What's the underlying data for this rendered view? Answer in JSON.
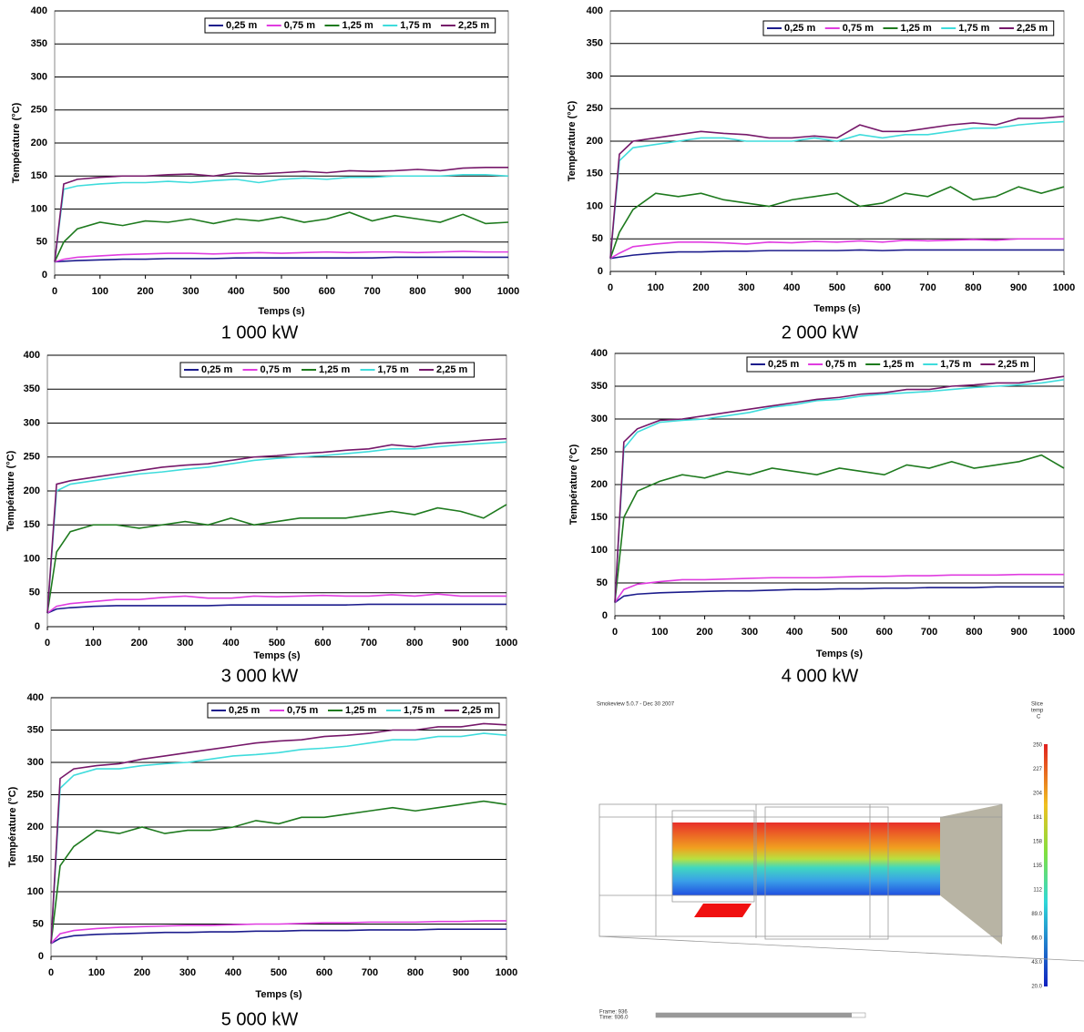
{
  "chart_data": [
    {
      "type": "line",
      "caption": "1 000 kW",
      "x_label": "Temps (s)",
      "y_label": "Température (°C)",
      "x": [
        0,
        20,
        50,
        100,
        150,
        200,
        250,
        300,
        350,
        400,
        450,
        500,
        550,
        600,
        650,
        700,
        750,
        800,
        850,
        900,
        950,
        1000
      ],
      "xlim": [
        0,
        1000
      ],
      "xticks": [
        0,
        100,
        200,
        300,
        400,
        500,
        600,
        700,
        800,
        900,
        1000
      ],
      "ylim": [
        0,
        400
      ],
      "yticks": [
        0,
        50,
        100,
        150,
        200,
        250,
        300,
        350,
        400
      ],
      "grid": true,
      "series": [
        {
          "name": "0,25 m",
          "color": "#1c1c8c",
          "values": [
            20,
            21,
            22,
            23,
            24,
            24,
            25,
            25,
            25,
            26,
            26,
            26,
            26,
            26,
            26,
            26,
            27,
            27,
            27,
            27,
            27,
            27
          ]
        },
        {
          "name": "0,75 m",
          "color": "#e03ce0",
          "values": [
            20,
            24,
            27,
            29,
            31,
            32,
            33,
            33,
            32,
            33,
            34,
            33,
            34,
            35,
            34,
            35,
            35,
            34,
            35,
            36,
            35,
            35
          ]
        },
        {
          "name": "1,25 m",
          "color": "#1e7a1e",
          "values": [
            20,
            50,
            70,
            80,
            75,
            82,
            80,
            85,
            78,
            85,
            82,
            88,
            80,
            85,
            95,
            82,
            90,
            85,
            80,
            92,
            78,
            80
          ]
        },
        {
          "name": "1,75 m",
          "color": "#3fdcdc",
          "values": [
            20,
            130,
            135,
            138,
            140,
            140,
            142,
            140,
            143,
            145,
            140,
            145,
            147,
            145,
            148,
            148,
            150,
            150,
            150,
            152,
            152,
            150
          ]
        },
        {
          "name": "2,25 m",
          "color": "#76186a",
          "values": [
            20,
            138,
            145,
            148,
            150,
            150,
            152,
            153,
            150,
            155,
            153,
            155,
            157,
            155,
            158,
            157,
            158,
            160,
            158,
            162,
            163,
            163
          ]
        }
      ]
    },
    {
      "type": "line",
      "caption": "2 000 kW",
      "x_label": "Temps (s)",
      "y_label": "Température (°C)",
      "x": [
        0,
        20,
        50,
        100,
        150,
        200,
        250,
        300,
        350,
        400,
        450,
        500,
        550,
        600,
        650,
        700,
        750,
        800,
        850,
        900,
        950,
        1000
      ],
      "xlim": [
        0,
        1000
      ],
      "xticks": [
        0,
        100,
        200,
        300,
        400,
        500,
        600,
        700,
        800,
        900,
        1000
      ],
      "ylim": [
        0,
        400
      ],
      "yticks": [
        0,
        50,
        100,
        150,
        200,
        250,
        300,
        350,
        400
      ],
      "grid": true,
      "series": [
        {
          "name": "0,25 m",
          "color": "#1c1c8c",
          "values": [
            20,
            22,
            25,
            28,
            30,
            30,
            31,
            31,
            32,
            32,
            32,
            32,
            33,
            32,
            33,
            33,
            33,
            33,
            33,
            33,
            33,
            33
          ]
        },
        {
          "name": "0,75 m",
          "color": "#e03ce0",
          "values": [
            20,
            28,
            38,
            42,
            45,
            45,
            44,
            42,
            45,
            44,
            46,
            45,
            47,
            45,
            48,
            47,
            48,
            49,
            48,
            50,
            50,
            50
          ]
        },
        {
          "name": "1,25 m",
          "color": "#1e7a1e",
          "values": [
            20,
            60,
            95,
            120,
            115,
            120,
            110,
            105,
            100,
            110,
            115,
            120,
            100,
            105,
            120,
            115,
            130,
            110,
            115,
            130,
            120,
            130
          ]
        },
        {
          "name": "1,75 m",
          "color": "#3fdcdc",
          "values": [
            20,
            170,
            190,
            195,
            200,
            205,
            205,
            200,
            200,
            200,
            205,
            200,
            210,
            205,
            210,
            210,
            215,
            220,
            220,
            225,
            228,
            230
          ]
        },
        {
          "name": "2,25 m",
          "color": "#76186a",
          "values": [
            20,
            180,
            200,
            205,
            210,
            215,
            212,
            210,
            205,
            205,
            208,
            205,
            225,
            215,
            215,
            220,
            225,
            228,
            225,
            235,
            235,
            238
          ]
        }
      ]
    },
    {
      "type": "line",
      "caption": "3 000 kW",
      "x_label": "Temps (s)",
      "y_label": "Température (°C)",
      "x": [
        0,
        20,
        50,
        100,
        150,
        200,
        250,
        300,
        350,
        400,
        450,
        500,
        550,
        600,
        650,
        700,
        750,
        800,
        850,
        900,
        950,
        1000
      ],
      "xlim": [
        0,
        1000
      ],
      "xticks": [
        0,
        100,
        200,
        300,
        400,
        500,
        600,
        700,
        800,
        900,
        1000
      ],
      "ylim": [
        0,
        400
      ],
      "yticks": [
        0,
        50,
        100,
        150,
        200,
        250,
        300,
        350,
        400
      ],
      "grid": true,
      "series": [
        {
          "name": "0,25 m",
          "color": "#1c1c8c",
          "values": [
            20,
            26,
            28,
            30,
            31,
            31,
            31,
            31,
            31,
            32,
            32,
            32,
            32,
            32,
            32,
            33,
            33,
            33,
            33,
            33,
            33,
            33
          ]
        },
        {
          "name": "0,75 m",
          "color": "#e03ce0",
          "values": [
            20,
            30,
            34,
            37,
            40,
            40,
            43,
            45,
            42,
            42,
            45,
            44,
            45,
            46,
            45,
            45,
            47,
            45,
            48,
            45,
            45,
            45
          ]
        },
        {
          "name": "1,25 m",
          "color": "#1e7a1e",
          "values": [
            20,
            110,
            140,
            150,
            150,
            145,
            150,
            155,
            150,
            160,
            150,
            155,
            160,
            160,
            160,
            165,
            170,
            165,
            175,
            170,
            160,
            180
          ]
        },
        {
          "name": "1,75 m",
          "color": "#3fdcdc",
          "values": [
            20,
            200,
            210,
            215,
            220,
            225,
            228,
            232,
            235,
            240,
            245,
            248,
            250,
            252,
            255,
            258,
            262,
            262,
            265,
            268,
            270,
            272
          ]
        },
        {
          "name": "2,25 m",
          "color": "#76186a",
          "values": [
            20,
            210,
            215,
            220,
            225,
            230,
            235,
            238,
            240,
            245,
            250,
            252,
            255,
            257,
            260,
            262,
            268,
            265,
            270,
            272,
            275,
            277
          ]
        }
      ]
    },
    {
      "type": "line",
      "caption": "4 000 kW",
      "x_label": "Temps (s)",
      "y_label": "Température (°C)",
      "x": [
        0,
        20,
        50,
        100,
        150,
        200,
        250,
        300,
        350,
        400,
        450,
        500,
        550,
        600,
        650,
        700,
        750,
        800,
        850,
        900,
        950,
        1000
      ],
      "xlim": [
        0,
        1000
      ],
      "xticks": [
        0,
        100,
        200,
        300,
        400,
        500,
        600,
        700,
        800,
        900,
        1000
      ],
      "ylim": [
        0,
        400
      ],
      "yticks": [
        0,
        50,
        100,
        150,
        200,
        250,
        300,
        350,
        400
      ],
      "grid": true,
      "series": [
        {
          "name": "0,25 m",
          "color": "#1c1c8c",
          "values": [
            20,
            30,
            33,
            35,
            36,
            37,
            38,
            38,
            39,
            40,
            40,
            41,
            41,
            42,
            42,
            43,
            43,
            43,
            44,
            44,
            44,
            44
          ]
        },
        {
          "name": "0,75 m",
          "color": "#e03ce0",
          "values": [
            20,
            40,
            48,
            52,
            55,
            55,
            56,
            57,
            58,
            58,
            58,
            59,
            60,
            60,
            61,
            61,
            62,
            62,
            62,
            63,
            63,
            63
          ]
        },
        {
          "name": "1,25 m",
          "color": "#1e7a1e",
          "values": [
            20,
            150,
            190,
            205,
            215,
            210,
            220,
            215,
            225,
            220,
            215,
            225,
            220,
            215,
            230,
            225,
            235,
            225,
            230,
            235,
            245,
            225
          ]
        },
        {
          "name": "1,75 m",
          "color": "#3fdcdc",
          "values": [
            20,
            255,
            280,
            295,
            298,
            300,
            305,
            310,
            318,
            322,
            328,
            330,
            335,
            338,
            340,
            342,
            345,
            348,
            350,
            352,
            355,
            360
          ]
        },
        {
          "name": "2,25 m",
          "color": "#76186a",
          "values": [
            20,
            265,
            285,
            298,
            300,
            305,
            310,
            315,
            320,
            325,
            330,
            333,
            338,
            340,
            345,
            345,
            350,
            352,
            355,
            355,
            360,
            365
          ]
        }
      ]
    },
    {
      "type": "line",
      "caption": "5 000 kW",
      "x_label": "Temps (s)",
      "y_label": "Température (°C)",
      "x": [
        0,
        20,
        50,
        100,
        150,
        200,
        250,
        300,
        350,
        400,
        450,
        500,
        550,
        600,
        650,
        700,
        750,
        800,
        850,
        900,
        950,
        1000
      ],
      "xlim": [
        0,
        1000
      ],
      "xticks": [
        0,
        100,
        200,
        300,
        400,
        500,
        600,
        700,
        800,
        900,
        1000
      ],
      "ylim": [
        0,
        400
      ],
      "yticks": [
        0,
        50,
        100,
        150,
        200,
        250,
        300,
        350,
        400
      ],
      "grid": true,
      "series": [
        {
          "name": "0,25 m",
          "color": "#1c1c8c",
          "values": [
            20,
            28,
            32,
            34,
            35,
            36,
            37,
            37,
            38,
            38,
            39,
            39,
            40,
            40,
            40,
            41,
            41,
            41,
            42,
            42,
            42,
            42
          ]
        },
        {
          "name": "0,75 m",
          "color": "#e03ce0",
          "values": [
            20,
            35,
            40,
            43,
            45,
            46,
            47,
            48,
            48,
            49,
            50,
            50,
            51,
            52,
            52,
            53,
            53,
            53,
            54,
            54,
            55,
            55
          ]
        },
        {
          "name": "1,25 m",
          "color": "#1e7a1e",
          "values": [
            20,
            140,
            170,
            195,
            190,
            200,
            190,
            195,
            195,
            200,
            210,
            205,
            215,
            215,
            220,
            225,
            230,
            225,
            230,
            235,
            240,
            235
          ]
        },
        {
          "name": "1,75 m",
          "color": "#3fdcdc",
          "values": [
            20,
            260,
            280,
            290,
            290,
            295,
            298,
            300,
            305,
            310,
            312,
            315,
            320,
            322,
            325,
            330,
            335,
            335,
            340,
            340,
            345,
            342
          ]
        },
        {
          "name": "2,25 m",
          "color": "#76186a",
          "values": [
            20,
            275,
            290,
            295,
            298,
            305,
            310,
            315,
            320,
            325,
            330,
            333,
            335,
            340,
            342,
            345,
            350,
            350,
            355,
            355,
            360,
            358
          ]
        }
      ]
    }
  ],
  "smokeview": {
    "title": "Smokeview 5.0.7 - Dec 30 2007",
    "legend_label": [
      "Slice",
      "temp",
      "C"
    ],
    "colorbar_labels": [
      "250",
      "227",
      "204",
      "181",
      "158",
      "135",
      "112",
      "89.0",
      "66.0",
      "43.0",
      "20.0"
    ],
    "frame": "Frame: 936",
    "time": "Time: 936.0"
  }
}
